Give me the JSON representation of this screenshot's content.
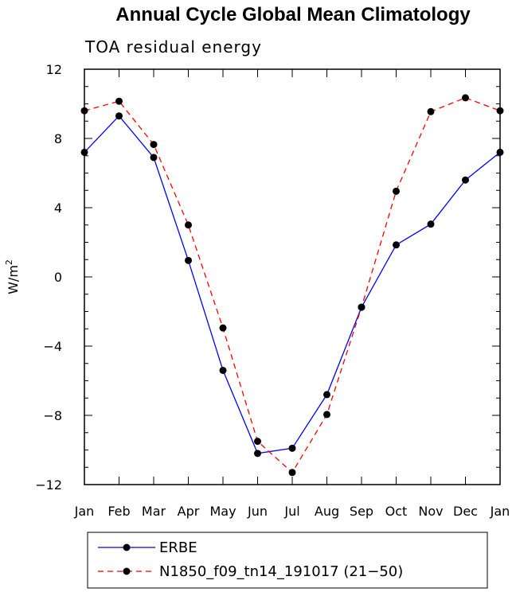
{
  "chart_data": {
    "type": "line",
    "title": "Annual Cycle Global Mean Climatology",
    "subtitle": "TOA residual energy",
    "ylabel": "W/m",
    "ylabel_superscript": "2",
    "categories": [
      "Jan",
      "Feb",
      "Mar",
      "Apr",
      "May",
      "Jun",
      "Jul",
      "Aug",
      "Sep",
      "Oct",
      "Nov",
      "Dec",
      "Jan"
    ],
    "ylim": [
      -12,
      12
    ],
    "yticks": [
      12,
      8,
      4,
      0,
      -4,
      -8,
      -12
    ],
    "ytick_labels": [
      "12",
      "8",
      "4",
      "0",
      "−4",
      "−8",
      "−12"
    ],
    "series": [
      {
        "name": "ERBE",
        "color": "#0000ff",
        "linestyle": "solid",
        "values": [
          7.2,
          9.3,
          6.9,
          0.95,
          -5.4,
          -10.2,
          -9.9,
          -6.8,
          -1.75,
          1.85,
          3.05,
          5.6,
          7.2
        ]
      },
      {
        "name": "N1850_f09_tn14_191017 (21−50)",
        "color": "#ff0000",
        "linestyle": "dashed",
        "values": [
          9.6,
          10.15,
          7.65,
          3.0,
          -2.95,
          -9.5,
          -11.3,
          -7.95,
          -1.75,
          4.95,
          9.55,
          10.35,
          9.6
        ]
      }
    ],
    "legend_position": "bottom-left"
  }
}
